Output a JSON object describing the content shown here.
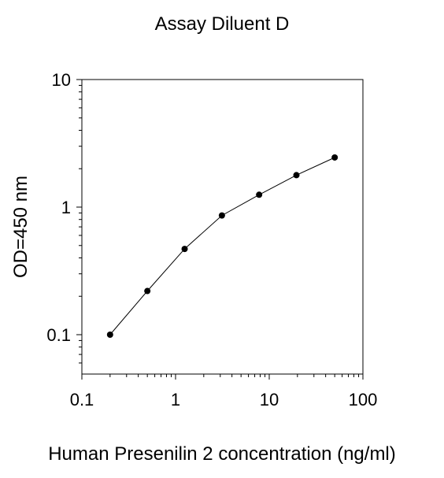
{
  "chart_data": {
    "type": "line",
    "title": "Assay Diluent D",
    "xlabel": "Human Presenilin 2 concentration (ng/ml)",
    "ylabel": "OD=450 nm",
    "xscale": "log",
    "yscale": "log",
    "xlim": [
      0.1,
      100
    ],
    "ylim": [
      0.05,
      10
    ],
    "xticks": [
      0.1,
      1,
      10,
      100
    ],
    "xtick_labels": [
      "0.1",
      "1",
      "10",
      "100"
    ],
    "yticks": [
      0.1,
      1,
      10
    ],
    "ytick_labels": [
      "0.1",
      "1",
      "10"
    ],
    "grid": false,
    "legend": "none",
    "series": [
      {
        "x": [
          0.2,
          0.5,
          1.25,
          3.125,
          7.8,
          19.5,
          50
        ],
        "y": [
          0.1,
          0.22,
          0.47,
          0.86,
          1.25,
          1.78,
          2.45
        ]
      }
    ],
    "colors": {
      "line": "#000000",
      "marker": "#000000",
      "axis": "#000000"
    }
  }
}
